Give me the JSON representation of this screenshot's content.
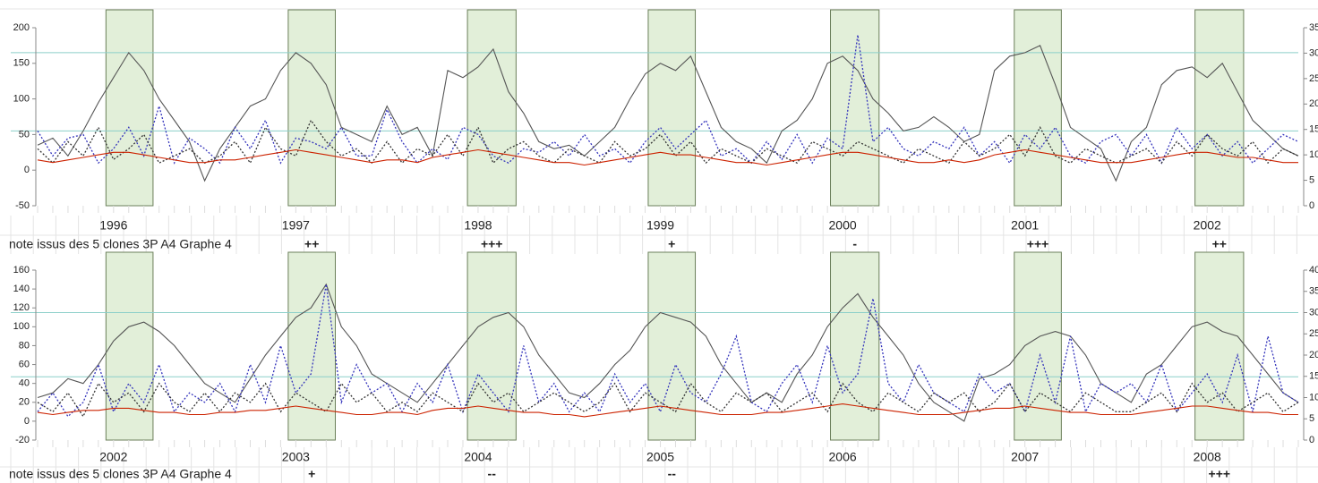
{
  "chart_data": [
    {
      "type": "line",
      "label_prefix": "note issus des 5 clones 3P A4 Graphe 4",
      "categories": [
        null,
        null,
        null,
        null,
        null,
        "1996",
        null,
        null,
        null,
        null,
        null,
        null,
        null,
        null,
        null,
        null,
        null,
        "1997",
        null,
        null,
        null,
        null,
        null,
        null,
        null,
        null,
        null,
        null,
        null,
        "1998",
        null,
        null,
        null,
        null,
        null,
        null,
        null,
        null,
        null,
        null,
        null,
        "1999",
        null,
        null,
        null,
        null,
        null,
        null,
        null,
        null,
        null,
        null,
        null,
        "2000",
        null,
        null,
        null,
        null,
        null,
        null,
        null,
        null,
        null,
        null,
        null,
        "2001",
        null,
        null,
        null,
        null,
        null,
        null,
        null,
        null,
        null,
        null,
        null,
        "2002",
        null,
        null,
        null,
        null,
        null,
        null
      ],
      "ylim": [
        -50,
        200
      ],
      "yticks": [
        -50,
        0,
        50,
        100,
        150,
        200
      ],
      "y2lim": [
        0,
        35
      ],
      "y2ticks": [
        0,
        5,
        10,
        15,
        20,
        25,
        30,
        35
      ],
      "hlines": [
        165,
        55
      ],
      "hline_color": "#8ccfc9",
      "bands": [
        {
          "start": 4.5,
          "end": 7.6
        },
        {
          "start": 16.5,
          "end": 19.6,
          "note": "++"
        },
        {
          "start": 28.3,
          "end": 31.5,
          "note": "+++"
        },
        {
          "start": 40.2,
          "end": 43.3,
          "note": "+"
        },
        {
          "start": 52.2,
          "end": 55.4,
          "note": "-"
        },
        {
          "start": 64.3,
          "end": 67.4,
          "note": "+++"
        },
        {
          "start": 76.2,
          "end": 79.4,
          "note": "++"
        }
      ],
      "series": [
        {
          "color": "#555555",
          "style": "solid",
          "values": [
            35,
            45,
            20,
            55,
            95,
            130,
            165,
            140,
            100,
            70,
            40,
            -15,
            30,
            60,
            90,
            100,
            140,
            165,
            150,
            120,
            60,
            50,
            40,
            90,
            50,
            60,
            20,
            140,
            130,
            145,
            170,
            110,
            80,
            40,
            30,
            35,
            20,
            40,
            60,
            100,
            135,
            150,
            140,
            160,
            110,
            60,
            40,
            30,
            10,
            55,
            70,
            100,
            150,
            160,
            140,
            100,
            80,
            55,
            60,
            75,
            60,
            40,
            50,
            140,
            160,
            165,
            175,
            120,
            60,
            45,
            30,
            -15,
            40,
            60,
            120,
            140,
            145,
            130,
            150,
            110,
            70,
            50,
            30,
            20
          ]
        },
        {
          "color": "#3333bb",
          "style": "dotted",
          "values": [
            55,
            20,
            45,
            50,
            10,
            30,
            60,
            20,
            90,
            10,
            45,
            30,
            10,
            60,
            30,
            70,
            10,
            45,
            40,
            30,
            60,
            20,
            20,
            85,
            40,
            10,
            30,
            15,
            60,
            50,
            20,
            10,
            30,
            25,
            40,
            20,
            50,
            20,
            30,
            10,
            40,
            60,
            30,
            50,
            70,
            20,
            30,
            10,
            40,
            15,
            50,
            10,
            45,
            30,
            190,
            40,
            60,
            30,
            20,
            40,
            30,
            60,
            20,
            40,
            10,
            50,
            30,
            60,
            20,
            10,
            40,
            50,
            20,
            50,
            10,
            60,
            30,
            50,
            20,
            40,
            10,
            30,
            50,
            40
          ]
        },
        {
          "color": "#333333",
          "style": "dotted",
          "values": [
            30,
            10,
            40,
            20,
            60,
            15,
            30,
            50,
            10,
            20,
            30,
            10,
            20,
            40,
            10,
            60,
            30,
            20,
            70,
            40,
            20,
            30,
            10,
            40,
            10,
            30,
            20,
            50,
            20,
            60,
            10,
            30,
            40,
            20,
            10,
            30,
            20,
            10,
            40,
            20,
            30,
            50,
            20,
            40,
            10,
            30,
            20,
            10,
            30,
            20,
            10,
            40,
            30,
            20,
            40,
            30,
            20,
            10,
            30,
            20,
            10,
            40,
            20,
            30,
            50,
            20,
            60,
            20,
            10,
            30,
            20,
            10,
            20,
            30,
            10,
            40,
            20,
            50,
            30,
            20,
            40,
            10,
            30,
            20
          ]
        },
        {
          "color": "#cc2200",
          "style": "solid",
          "axis": "y2",
          "values": [
            9,
            8.5,
            9,
            9.5,
            10,
            10.5,
            10.5,
            10,
            9.5,
            9,
            8.5,
            8.5,
            9,
            9,
            9.5,
            10,
            10.5,
            11,
            10.5,
            10,
            9.5,
            9,
            8.5,
            9,
            9,
            8.5,
            9.5,
            10,
            10.5,
            11,
            10.5,
            10,
            9.5,
            9,
            8.5,
            8.5,
            8,
            8.5,
            9,
            9.5,
            10,
            10.5,
            10,
            10,
            9.5,
            9,
            8.5,
            8.5,
            8,
            8.5,
            9,
            9.5,
            10,
            10.5,
            10.5,
            10,
            9.5,
            9,
            8.5,
            8.5,
            9,
            8.5,
            9,
            10,
            10.5,
            11,
            10.5,
            10,
            9.5,
            9,
            8.5,
            8.5,
            8.5,
            9,
            9.5,
            10,
            10.5,
            10.5,
            10,
            9.5,
            9.5,
            9,
            8.5,
            8.5
          ]
        }
      ]
    },
    {
      "type": "line",
      "label_prefix": "note issus des 5 clones 3P A4 Graphe 4",
      "categories": [
        null,
        null,
        null,
        null,
        null,
        "2002",
        null,
        null,
        null,
        null,
        null,
        null,
        null,
        null,
        null,
        null,
        null,
        "2003",
        null,
        null,
        null,
        null,
        null,
        null,
        null,
        null,
        null,
        null,
        null,
        "2004",
        null,
        null,
        null,
        null,
        null,
        null,
        null,
        null,
        null,
        null,
        null,
        "2005",
        null,
        null,
        null,
        null,
        null,
        null,
        null,
        null,
        null,
        null,
        null,
        "2006",
        null,
        null,
        null,
        null,
        null,
        null,
        null,
        null,
        null,
        null,
        null,
        "2007",
        null,
        null,
        null,
        null,
        null,
        null,
        null,
        null,
        null,
        null,
        null,
        "2008",
        null,
        null,
        null,
        null,
        null,
        null
      ],
      "ylim": [
        -20,
        160
      ],
      "yticks": [
        -20,
        0,
        20,
        40,
        60,
        80,
        100,
        120,
        140,
        160
      ],
      "y2lim": [
        0,
        40
      ],
      "y2ticks": [
        0,
        5,
        10,
        15,
        20,
        25,
        30,
        35,
        40
      ],
      "hlines": [
        115,
        47
      ],
      "hline_color": "#8ccfc9",
      "bands": [
        {
          "start": 4.5,
          "end": 7.6
        },
        {
          "start": 16.5,
          "end": 19.6,
          "note": "+"
        },
        {
          "start": 28.3,
          "end": 31.5,
          "note": "--"
        },
        {
          "start": 40.2,
          "end": 43.3,
          "note": "--"
        },
        {
          "start": 52.2,
          "end": 55.4
        },
        {
          "start": 64.3,
          "end": 67.4
        },
        {
          "start": 76.2,
          "end": 79.4,
          "note": "+++"
        }
      ],
      "series": [
        {
          "color": "#555555",
          "style": "solid",
          "values": [
            25,
            30,
            45,
            40,
            60,
            85,
            100,
            105,
            95,
            80,
            60,
            40,
            30,
            20,
            45,
            70,
            90,
            110,
            120,
            145,
            100,
            80,
            50,
            40,
            30,
            20,
            40,
            60,
            80,
            100,
            110,
            115,
            100,
            70,
            50,
            30,
            25,
            40,
            60,
            75,
            100,
            115,
            110,
            105,
            90,
            60,
            40,
            20,
            30,
            20,
            50,
            70,
            100,
            120,
            135,
            110,
            90,
            70,
            40,
            20,
            10,
            0,
            45,
            50,
            60,
            80,
            90,
            95,
            90,
            70,
            40,
            30,
            20,
            50,
            60,
            80,
            100,
            105,
            95,
            90,
            70,
            50,
            30,
            20
          ]
        },
        {
          "color": "#3333bb",
          "style": "dotted",
          "values": [
            10,
            30,
            5,
            20,
            60,
            10,
            40,
            20,
            60,
            10,
            30,
            20,
            40,
            10,
            60,
            20,
            80,
            30,
            50,
            145,
            20,
            60,
            30,
            40,
            10,
            40,
            20,
            60,
            10,
            50,
            30,
            10,
            80,
            20,
            40,
            10,
            30,
            10,
            50,
            20,
            40,
            10,
            60,
            30,
            20,
            50,
            90,
            20,
            10,
            40,
            60,
            20,
            80,
            30,
            50,
            130,
            40,
            20,
            60,
            30,
            20,
            10,
            50,
            30,
            40,
            10,
            70,
            20,
            90,
            10,
            40,
            30,
            40,
            20,
            60,
            10,
            30,
            50,
            20,
            70,
            10,
            90,
            30,
            20
          ]
        },
        {
          "color": "#333333",
          "style": "dotted",
          "values": [
            20,
            10,
            30,
            5,
            40,
            20,
            30,
            10,
            40,
            20,
            10,
            30,
            10,
            30,
            20,
            40,
            10,
            30,
            20,
            10,
            40,
            20,
            30,
            10,
            20,
            10,
            30,
            20,
            10,
            40,
            20,
            30,
            10,
            20,
            30,
            20,
            10,
            20,
            40,
            10,
            30,
            20,
            10,
            40,
            20,
            10,
            30,
            20,
            30,
            10,
            20,
            30,
            10,
            40,
            20,
            10,
            30,
            20,
            10,
            30,
            20,
            30,
            10,
            20,
            40,
            10,
            30,
            20,
            10,
            30,
            20,
            10,
            10,
            20,
            30,
            10,
            40,
            20,
            30,
            10,
            20,
            30,
            10,
            20
          ]
        },
        {
          "color": "#cc2200",
          "style": "solid",
          "axis": "y2",
          "values": [
            6.5,
            6,
            6.5,
            7,
            7,
            7.5,
            7.5,
            7,
            6.5,
            6.5,
            6,
            6,
            6.5,
            6.5,
            7,
            7,
            7.5,
            8,
            7.5,
            7,
            6.5,
            6,
            6,
            6.5,
            6.5,
            6,
            7,
            7.5,
            7.5,
            8,
            7.5,
            7,
            6.5,
            6.5,
            6,
            6,
            5.5,
            6,
            6.5,
            7,
            7.5,
            8,
            7.5,
            7,
            6.5,
            6,
            6,
            6,
            6.5,
            6.5,
            7,
            7.5,
            8,
            8.5,
            8,
            7.5,
            7,
            6.5,
            6,
            6,
            6,
            6.5,
            7,
            7.5,
            7.5,
            8,
            7.5,
            7,
            6.5,
            6.5,
            6,
            6,
            6,
            6.5,
            7,
            7.5,
            8,
            8,
            7.5,
            7,
            6.5,
            6.5,
            6,
            6
          ]
        }
      ]
    }
  ]
}
